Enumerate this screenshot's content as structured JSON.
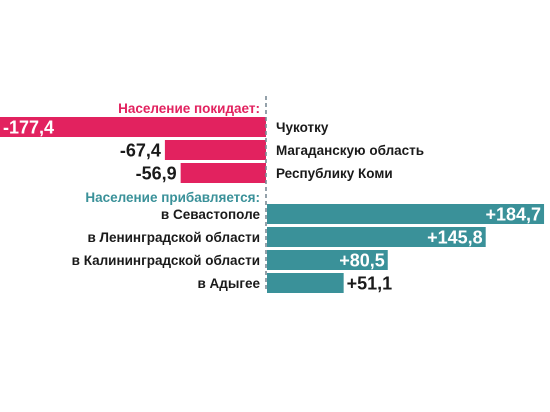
{
  "chart_data": {
    "type": "bar",
    "title": "",
    "groups": [
      {
        "heading": "Население покидает:",
        "color": "#e2225f",
        "items": [
          {
            "category": "Чукотку",
            "value": -177.4,
            "label": "-177,4"
          },
          {
            "category": "Магаданскую область",
            "value": -67.4,
            "label": "-67,4"
          },
          {
            "category": "Республику Коми",
            "value": -56.9,
            "label": "-56,9"
          }
        ]
      },
      {
        "heading": "Население прибавляется:",
        "color": "#3a9199",
        "items": [
          {
            "category": "в Севастополе",
            "value": 184.7,
            "label": "+184,7"
          },
          {
            "category": "в Ленинградской области",
            "value": 145.8,
            "label": "+145,8"
          },
          {
            "category": "в Калининградской области",
            "value": 80.5,
            "label": "+80,5"
          },
          {
            "category": "в Адыгее",
            "value": 51.1,
            "label": "+51,1"
          }
        ]
      }
    ],
    "axis_line": "dashed",
    "colors": {
      "negative": "#e2225f",
      "positive": "#3a9199",
      "axis": "#7a8a96"
    }
  }
}
